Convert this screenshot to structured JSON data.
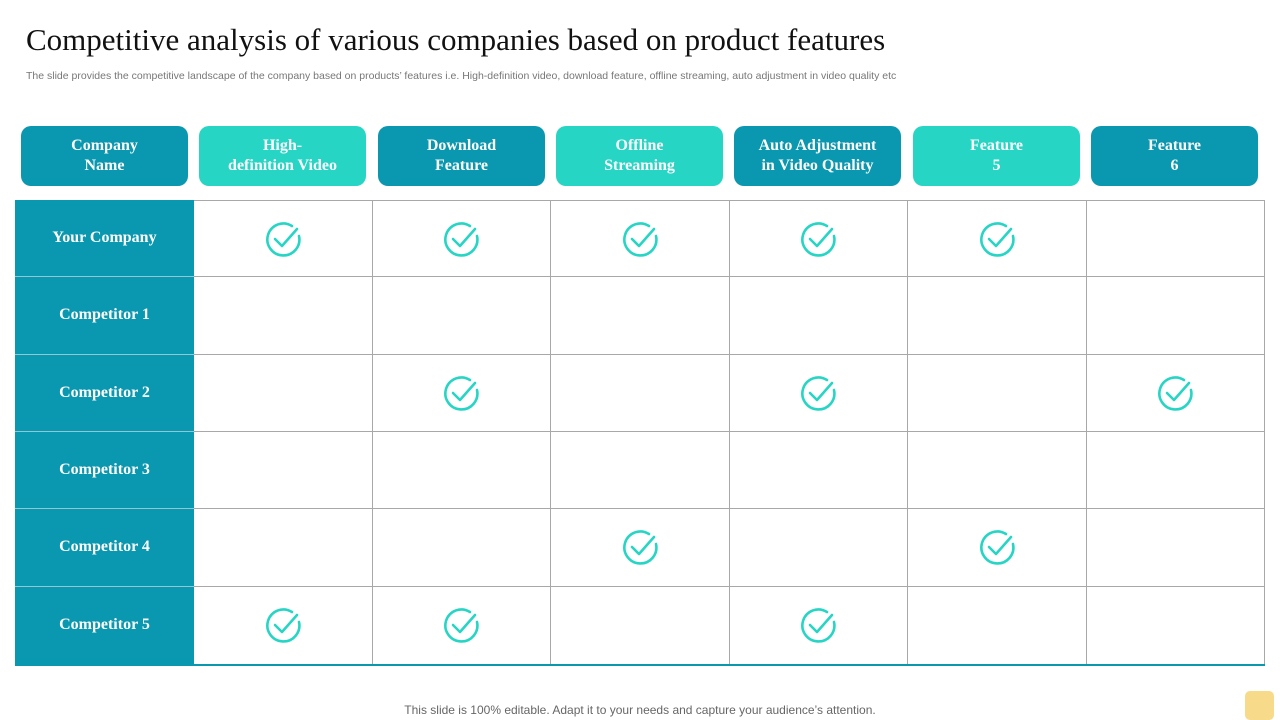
{
  "slide": {
    "title": "Competitive analysis of various companies based on product features",
    "subtitle": "The slide provides the competitive landscape of the company based on products’ features i.e. High-definition video, download feature, offline streaming, auto adjustment in video quality etc",
    "footer": "This slide is 100% editable. Adapt it to your needs and capture your audience’s attention."
  },
  "colors": {
    "dark_teal": "#0a97b0",
    "light_teal": "#26d5c4",
    "check": "#26d5c4"
  },
  "table": {
    "headers": [
      {
        "line1": "Company",
        "line2": "Name",
        "style": "dark"
      },
      {
        "line1": "High-",
        "line2": "definition Video",
        "style": "light"
      },
      {
        "line1": "Download",
        "line2": "Feature",
        "style": "dark"
      },
      {
        "line1": "Offline",
        "line2": "Streaming",
        "style": "light"
      },
      {
        "line1": "Auto Adjustment",
        "line2": "in Video Quality",
        "style": "dark"
      },
      {
        "line1": "Feature",
        "line2": "5",
        "style": "light"
      },
      {
        "line1": "Feature",
        "line2": "6",
        "style": "dark"
      }
    ],
    "rows": [
      {
        "name": "Your Company",
        "checks": [
          true,
          true,
          true,
          true,
          true,
          false
        ]
      },
      {
        "name": "Competitor 1",
        "checks": [
          false,
          false,
          false,
          false,
          false,
          false
        ]
      },
      {
        "name": "Competitor 2",
        "checks": [
          false,
          true,
          false,
          true,
          false,
          true
        ]
      },
      {
        "name": "Competitor 3",
        "checks": [
          false,
          false,
          false,
          false,
          false,
          false
        ]
      },
      {
        "name": "Competitor 4",
        "checks": [
          false,
          false,
          true,
          false,
          true,
          false
        ]
      },
      {
        "name": "Competitor 5",
        "checks": [
          true,
          true,
          false,
          true,
          false,
          false
        ]
      }
    ],
    "check_icon": "circle-check-icon"
  }
}
